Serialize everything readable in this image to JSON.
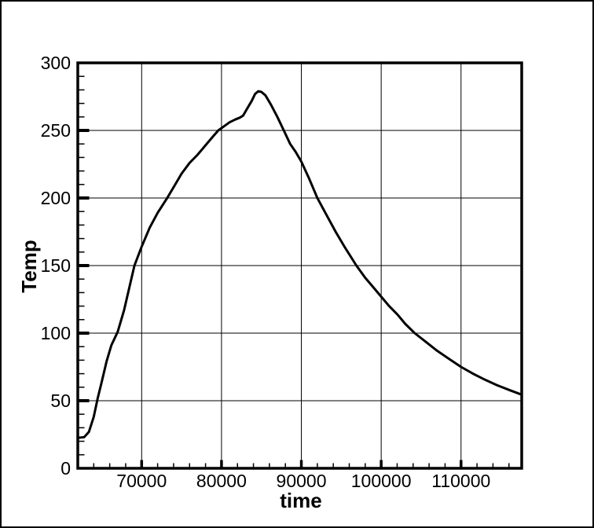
{
  "window": {
    "background_color": "#ffffff",
    "border_color": "#000000"
  },
  "chart_data": {
    "type": "line",
    "title": "",
    "xlabel": "time",
    "ylabel": "Temp",
    "xlim": [
      62000,
      117600
    ],
    "ylim": [
      0,
      300
    ],
    "x_major_ticks": [
      70000,
      80000,
      90000,
      100000,
      110000
    ],
    "x_minor_step": 2000,
    "y_major_ticks": [
      0,
      50,
      100,
      150,
      200,
      250,
      300
    ],
    "y_minor_step": 10,
    "grid": true,
    "legend": "none",
    "line_color": "#000000",
    "grid_color": "#000000",
    "series": [
      {
        "name": "Temp",
        "points": [
          [
            62000,
            22.5
          ],
          [
            62800,
            23
          ],
          [
            63400,
            27
          ],
          [
            64000,
            38
          ],
          [
            64500,
            52
          ],
          [
            65000,
            64
          ],
          [
            65600,
            79
          ],
          [
            66200,
            91
          ],
          [
            67000,
            101
          ],
          [
            67800,
            117
          ],
          [
            68500,
            135
          ],
          [
            69100,
            150
          ],
          [
            70000,
            164
          ],
          [
            71000,
            178
          ],
          [
            72000,
            189
          ],
          [
            73200,
            200
          ],
          [
            74100,
            209
          ],
          [
            75000,
            218
          ],
          [
            76000,
            226
          ],
          [
            77000,
            232
          ],
          [
            78000,
            239
          ],
          [
            79000,
            246
          ],
          [
            79600,
            250
          ],
          [
            80300,
            253
          ],
          [
            81000,
            256
          ],
          [
            81700,
            258
          ],
          [
            82300,
            259.5
          ],
          [
            82700,
            261
          ],
          [
            83200,
            266
          ],
          [
            83800,
            272
          ],
          [
            84200,
            277
          ],
          [
            84600,
            279
          ],
          [
            85000,
            278.5
          ],
          [
            85500,
            276
          ],
          [
            86200,
            269
          ],
          [
            87000,
            260
          ],
          [
            87800,
            250
          ],
          [
            88600,
            240
          ],
          [
            89300,
            234
          ],
          [
            90000,
            227
          ],
          [
            91000,
            214
          ],
          [
            92000,
            200
          ],
          [
            93100,
            188
          ],
          [
            94300,
            175
          ],
          [
            95500,
            163
          ],
          [
            96900,
            150
          ],
          [
            98000,
            141
          ],
          [
            99000,
            134
          ],
          [
            100000,
            127
          ],
          [
            101000,
            120
          ],
          [
            102000,
            114
          ],
          [
            103000,
            107
          ],
          [
            104200,
            100
          ],
          [
            105500,
            94
          ],
          [
            107000,
            87
          ],
          [
            108500,
            81
          ],
          [
            110000,
            75
          ],
          [
            111500,
            70
          ],
          [
            113000,
            65.5
          ],
          [
            114500,
            61.5
          ],
          [
            116000,
            58
          ],
          [
            117600,
            54.5
          ]
        ]
      }
    ]
  }
}
